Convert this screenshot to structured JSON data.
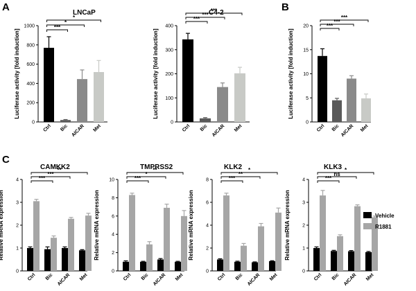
{
  "figure": {
    "panel_letters": [
      "A",
      "B",
      "C"
    ],
    "legend": [
      {
        "label": "Vehicle",
        "color": "#000000"
      },
      {
        "label": "R1881",
        "color": "#a6a6a6"
      }
    ]
  },
  "chart_data": [
    {
      "type": "bar",
      "panel": "A",
      "title": "LNCaP",
      "ylabel": "Luciferase activity [fold induction]",
      "categories": [
        "Ctrl",
        "Bic",
        "AICAR",
        "Met"
      ],
      "ylim": [
        0,
        1000
      ],
      "yticks": [
        0,
        200,
        400,
        600,
        800,
        1000
      ],
      "series": [
        {
          "values": [
            770,
            20,
            445,
            518
          ],
          "errors": [
            115,
            5,
            95,
            120
          ],
          "colors": [
            "#000000",
            "#5a5a5a",
            "#8a8a8a",
            "#c8cac6"
          ]
        }
      ],
      "significance": [
        {
          "from": 0,
          "to": 1,
          "label": "***"
        },
        {
          "from": 0,
          "to": 2,
          "label": "*"
        },
        {
          "from": 0,
          "to": 3,
          "label": "*"
        }
      ]
    },
    {
      "type": "bar",
      "panel": "A",
      "title": "C4-2",
      "ylabel": "Luciferase activity [fold induction]",
      "categories": [
        "Ctrl",
        "Bic",
        "AICAR",
        "Met"
      ],
      "ylim": [
        0,
        400
      ],
      "yticks": [
        0,
        100,
        200,
        300,
        400
      ],
      "series": [
        {
          "values": [
            343,
            15,
            145,
            202
          ],
          "errors": [
            25,
            3,
            17,
            25
          ],
          "colors": [
            "#000000",
            "#5a5a5a",
            "#8a8a8a",
            "#c8cac6"
          ]
        }
      ],
      "significance": [
        {
          "from": 0,
          "to": 1,
          "label": "***"
        },
        {
          "from": 0,
          "to": 2,
          "label": "***"
        },
        {
          "from": 0,
          "to": 3,
          "label": "***"
        }
      ]
    },
    {
      "type": "bar",
      "panel": "B",
      "title": "",
      "ylabel": "Luciferase activity [fold induction]",
      "categories": [
        "Ctrl",
        "Bic",
        "AICAR",
        "Met"
      ],
      "ylim": [
        0,
        20
      ],
      "yticks": [
        0,
        5,
        10,
        15,
        20
      ],
      "series": [
        {
          "values": [
            13.7,
            4.5,
            9.0,
            4.9
          ],
          "errors": [
            1.5,
            0.4,
            0.6,
            0.9
          ],
          "colors": [
            "#000000",
            "#5a5a5a",
            "#8a8a8a",
            "#c8cac6"
          ]
        }
      ],
      "significance": [
        {
          "from": 0,
          "to": 1,
          "label": "***"
        },
        {
          "from": 0,
          "to": 2,
          "label": "***"
        },
        {
          "from": 0,
          "to": 3,
          "label": "***"
        }
      ]
    },
    {
      "type": "bar",
      "panel": "C",
      "title": "CAMKK2",
      "ylabel": "Relative mRNA expression",
      "categories": [
        "Ctrl",
        "Bic",
        "AICAR",
        "Met"
      ],
      "ylim": [
        0,
        4
      ],
      "yticks": [
        0,
        1,
        2,
        3,
        4
      ],
      "series": [
        {
          "name": "Vehicle",
          "values": [
            1.0,
            0.95,
            1.0,
            0.9
          ],
          "errors": [
            0.05,
            0.1,
            0.05,
            0.03
          ]
        },
        {
          "name": "R1881",
          "values": [
            3.05,
            1.45,
            2.28,
            2.42
          ],
          "errors": [
            0.08,
            0.08,
            0.06,
            0.1
          ]
        }
      ],
      "significance": [
        {
          "from": 0,
          "to": 1,
          "label": "***"
        },
        {
          "from": 0,
          "to": 2,
          "label": "***"
        },
        {
          "from": 0,
          "to": 3,
          "label": "**"
        }
      ]
    },
    {
      "type": "bar",
      "panel": "C",
      "title": "TMPRSS2",
      "ylabel": "Relative mRNA expression",
      "categories": [
        "Ctrl",
        "Bic",
        "AICAR",
        "Met"
      ],
      "ylim": [
        0,
        10
      ],
      "yticks": [
        0,
        2,
        4,
        6,
        8,
        10
      ],
      "series": [
        {
          "name": "Vehicle",
          "values": [
            1.0,
            1.0,
            1.25,
            1.0
          ],
          "errors": [
            0.1,
            0.05,
            0.1,
            0.05
          ]
        },
        {
          "name": "R1881",
          "values": [
            8.3,
            2.9,
            6.9,
            6.0
          ],
          "errors": [
            0.2,
            0.3,
            0.4,
            0.6
          ]
        }
      ],
      "significance": [
        {
          "from": 0,
          "to": 1,
          "label": "***"
        },
        {
          "from": 0,
          "to": 2,
          "label": "*"
        },
        {
          "from": 0,
          "to": 3,
          "label": "**"
        }
      ]
    },
    {
      "type": "bar",
      "panel": "C",
      "title": "KLK2",
      "ylabel": "Relative mRNA expression",
      "categories": [
        "Ctrl",
        "Bic",
        "AICAR",
        "Met"
      ],
      "ylim": [
        0,
        8
      ],
      "yticks": [
        0,
        2,
        4,
        6,
        8
      ],
      "series": [
        {
          "name": "Vehicle",
          "values": [
            1.0,
            0.8,
            0.75,
            0.85
          ],
          "errors": [
            0.06,
            0.05,
            0.04,
            0.04
          ]
        },
        {
          "name": "R1881",
          "values": [
            6.6,
            2.2,
            3.9,
            5.1
          ],
          "errors": [
            0.2,
            0.2,
            0.25,
            0.4
          ]
        }
      ],
      "significance": [
        {
          "from": 0,
          "to": 1,
          "label": "***"
        },
        {
          "from": 0,
          "to": 2,
          "label": "**"
        },
        {
          "from": 0,
          "to": 3,
          "label": "*"
        }
      ]
    },
    {
      "type": "bar",
      "panel": "C",
      "title": "KLK3",
      "ylabel": "Relative mRNA expression",
      "categories": [
        "Ctrl",
        "Bic",
        "AICAR",
        "Met"
      ],
      "ylim": [
        0,
        4
      ],
      "yticks": [
        0,
        1,
        2,
        3,
        4
      ],
      "series": [
        {
          "name": "Vehicle",
          "values": [
            1.0,
            0.87,
            0.86,
            0.82
          ],
          "errors": [
            0.05,
            0.03,
            0.03,
            0.03
          ]
        },
        {
          "name": "R1881",
          "values": [
            3.3,
            1.52,
            2.83,
            2.35
          ],
          "errors": [
            0.22,
            0.06,
            0.06,
            0.05
          ]
        }
      ],
      "significance": [
        {
          "from": 0,
          "to": 1,
          "label": "***"
        },
        {
          "from": 0,
          "to": 2,
          "label": "ns"
        },
        {
          "from": 0,
          "to": 3,
          "label": "*"
        }
      ]
    }
  ]
}
